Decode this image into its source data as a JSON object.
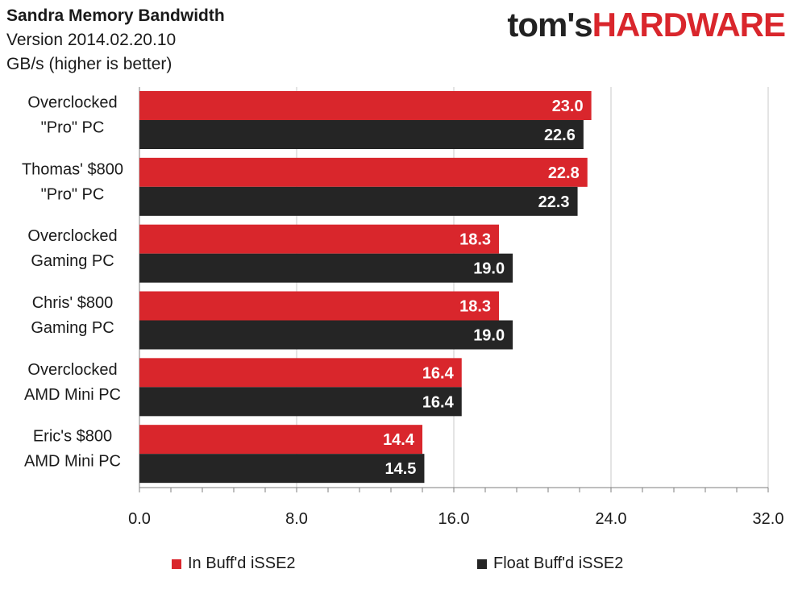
{
  "logo": {
    "part1": "tom's",
    "part2": "HARDWARE"
  },
  "chart_data": {
    "type": "bar",
    "orientation": "horizontal",
    "title": "Sandra Memory Bandwidth",
    "subtitle": "Version 2014.02.20.10",
    "unit_label": "GB/s (higher is better)",
    "categories": [
      [
        "Overclocked",
        "\"Pro\" PC"
      ],
      [
        "Thomas' $800",
        "\"Pro\" PC"
      ],
      [
        "Overclocked",
        "Gaming PC"
      ],
      [
        "Chris' $800",
        "Gaming PC"
      ],
      [
        "Overclocked",
        "AMD Mini PC"
      ],
      [
        "Eric's $800",
        "AMD Mini PC"
      ]
    ],
    "series": [
      {
        "name": "In Buff'd iSSE2",
        "color": "#d9262c",
        "values": [
          23.0,
          22.8,
          18.3,
          18.3,
          16.4,
          14.4
        ]
      },
      {
        "name": "Float Buff'd iSSE2",
        "color": "#252525",
        "values": [
          22.6,
          22.3,
          19.0,
          19.0,
          16.4,
          14.5
        ]
      }
    ],
    "xlim": [
      0,
      32
    ],
    "ticks": [
      "0.0",
      "8.0",
      "16.0",
      "24.0",
      "32.0"
    ],
    "tick_values": [
      0,
      8,
      16,
      24,
      32
    ],
    "minor_step": 1.6,
    "grid": true,
    "legend_position": "bottom",
    "gridline_color": "#c8c8c8"
  }
}
